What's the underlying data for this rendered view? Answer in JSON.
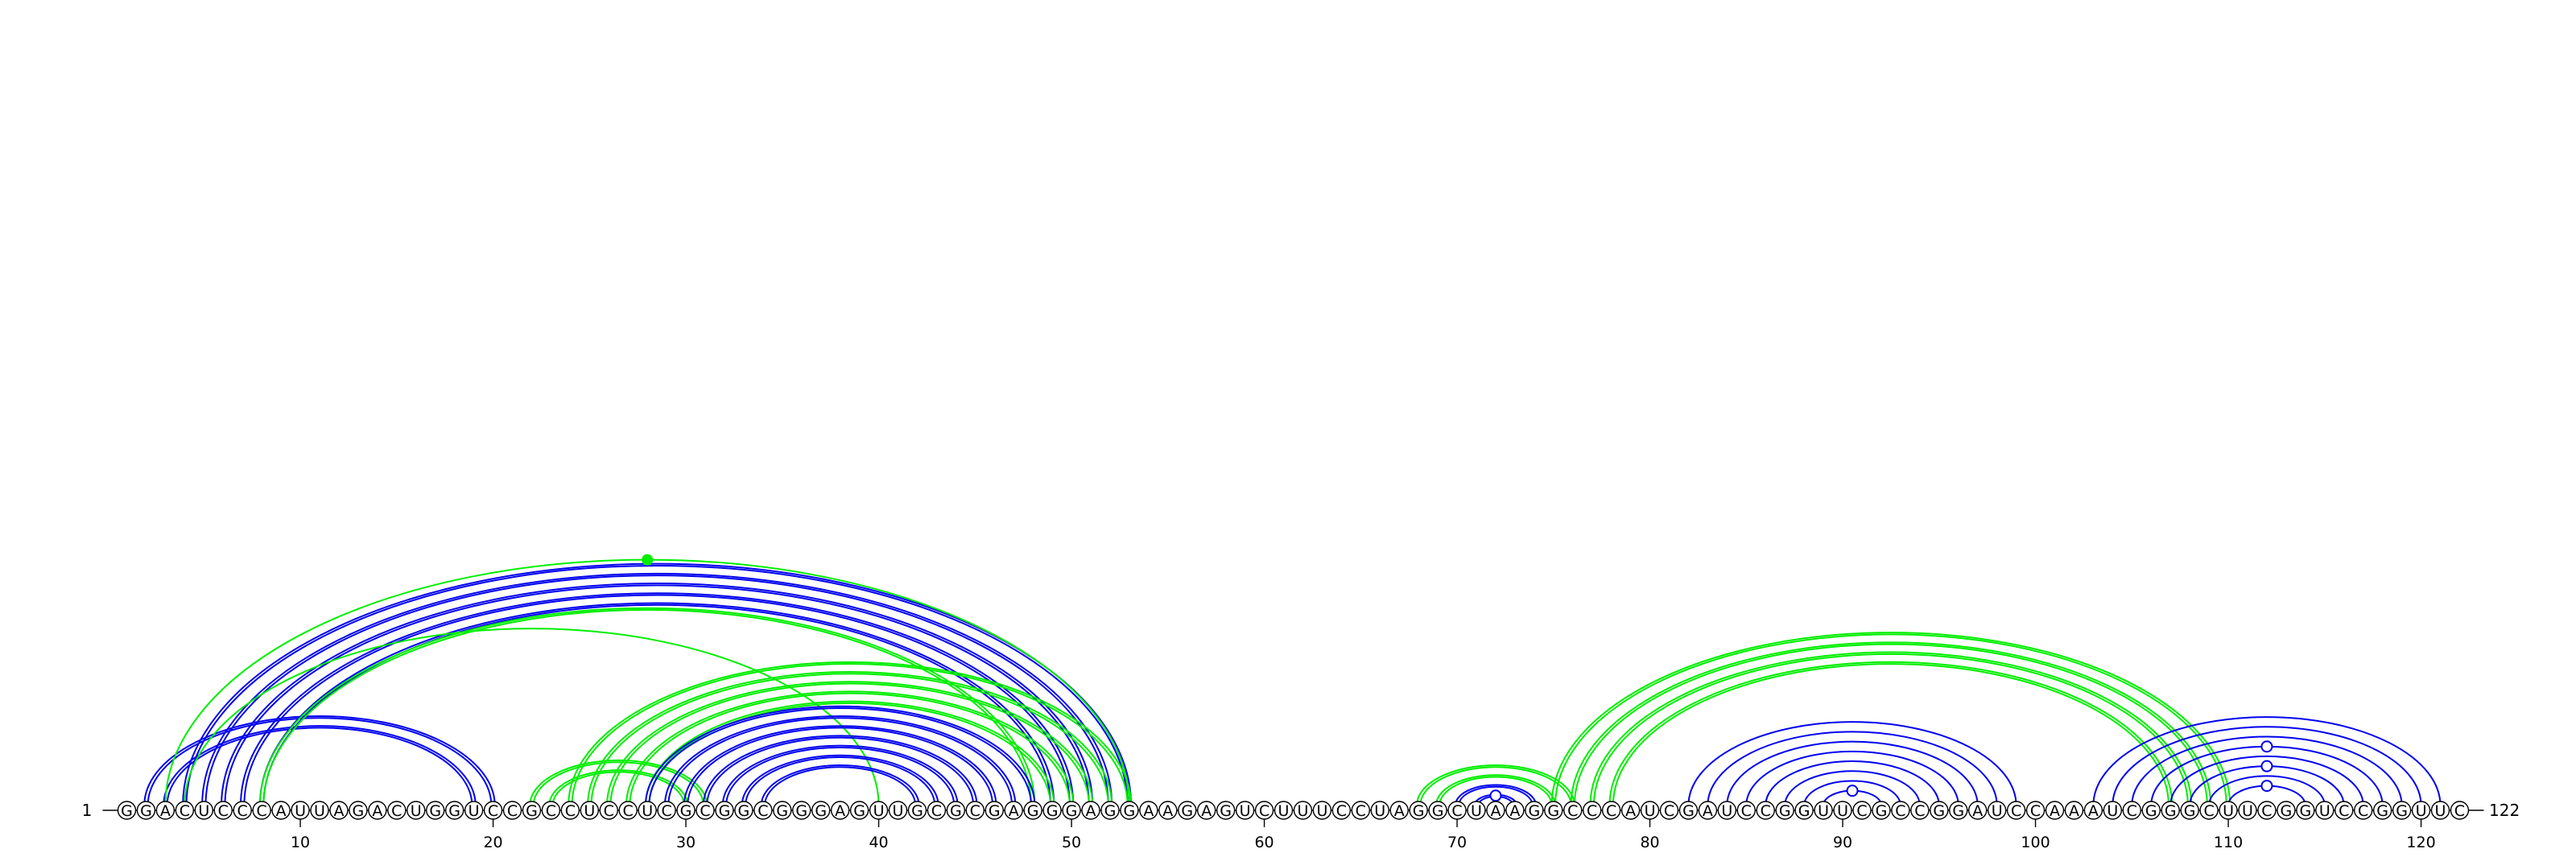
{
  "diagram": {
    "start_label": "1",
    "end_label": "122",
    "sequence": "GGACUCCCAUUAGACUGGUCCGCCUCCUCGCGGCGGGAGUUGCGCGAGGGAGGAAGAGUCUUUCCUAGGCUAAGGCCCAUCGAUCCGGUUCGCCGGAUCCAAAUCGGGCUUCGGUCCGGUUC",
    "ticks": [
      10,
      20,
      30,
      40,
      50,
      60,
      70,
      80,
      90,
      100,
      110,
      120
    ],
    "colors": {
      "blue": "#0000ee",
      "green": "#00ee00",
      "text": "#000000",
      "nucleotide_fill": "#ffffff"
    },
    "arc_groups": [
      {
        "color": "blue",
        "style": "double",
        "pairs": [
          [
            2,
            20
          ],
          [
            3,
            19
          ]
        ]
      },
      {
        "color": "blue",
        "style": "double",
        "pairs": [
          [
            4,
            53
          ],
          [
            5,
            52
          ],
          [
            6,
            51
          ],
          [
            7,
            50
          ],
          [
            8,
            49
          ]
        ]
      },
      {
        "color": "green",
        "style": "double",
        "pairs": [
          [
            8,
            48
          ]
        ]
      },
      {
        "color": "green",
        "style": "single",
        "pairs": [
          [
            3,
            53
          ]
        ],
        "apex_dot": true
      },
      {
        "color": "green",
        "style": "single",
        "pairs": [
          [
            4,
            40
          ]
        ]
      },
      {
        "color": "green",
        "style": "double",
        "pairs": [
          [
            22,
            31
          ],
          [
            23,
            30
          ]
        ]
      },
      {
        "color": "green",
        "style": "double",
        "pairs": [
          [
            24,
            53
          ],
          [
            25,
            52
          ],
          [
            26,
            51
          ],
          [
            27,
            50
          ],
          [
            28,
            49
          ]
        ]
      },
      {
        "color": "blue",
        "style": "double",
        "pairs": [
          [
            28,
            48
          ],
          [
            29,
            47
          ],
          [
            30,
            46
          ],
          [
            31,
            45
          ],
          [
            32,
            44
          ],
          [
            33,
            43
          ],
          [
            34,
            42
          ]
        ]
      },
      {
        "color": "green",
        "style": "double",
        "pairs": [
          [
            68,
            76
          ],
          [
            69,
            75
          ]
        ]
      },
      {
        "color": "blue",
        "style": "double",
        "pairs": [
          [
            70,
            74
          ],
          [
            71,
            73
          ]
        ],
        "loop_dot": [
          72,
          73
        ]
      },
      {
        "color": "green",
        "style": "double",
        "pairs": [
          [
            75,
            110
          ],
          [
            76,
            109
          ],
          [
            77,
            108
          ],
          [
            78,
            107
          ]
        ]
      },
      {
        "color": "blue",
        "style": "single",
        "pairs": [
          [
            82,
            99
          ],
          [
            83,
            98
          ],
          [
            84,
            97
          ],
          [
            85,
            96
          ],
          [
            86,
            95
          ],
          [
            87,
            94
          ],
          [
            88,
            93
          ],
          [
            89,
            92
          ]
        ],
        "loop_dot": [
          90,
          91
        ]
      },
      {
        "color": "blue",
        "style": "single",
        "pairs": [
          [
            103,
            121
          ],
          [
            104,
            120
          ],
          [
            105,
            119
          ],
          [
            106,
            118
          ],
          [
            107,
            117
          ],
          [
            108,
            116
          ],
          [
            109,
            115
          ],
          [
            110,
            114
          ]
        ],
        "loop_dots": [
          [
            111,
            112
          ],
          [
            111,
            112
          ],
          [
            111,
            112
          ]
        ]
      }
    ]
  }
}
